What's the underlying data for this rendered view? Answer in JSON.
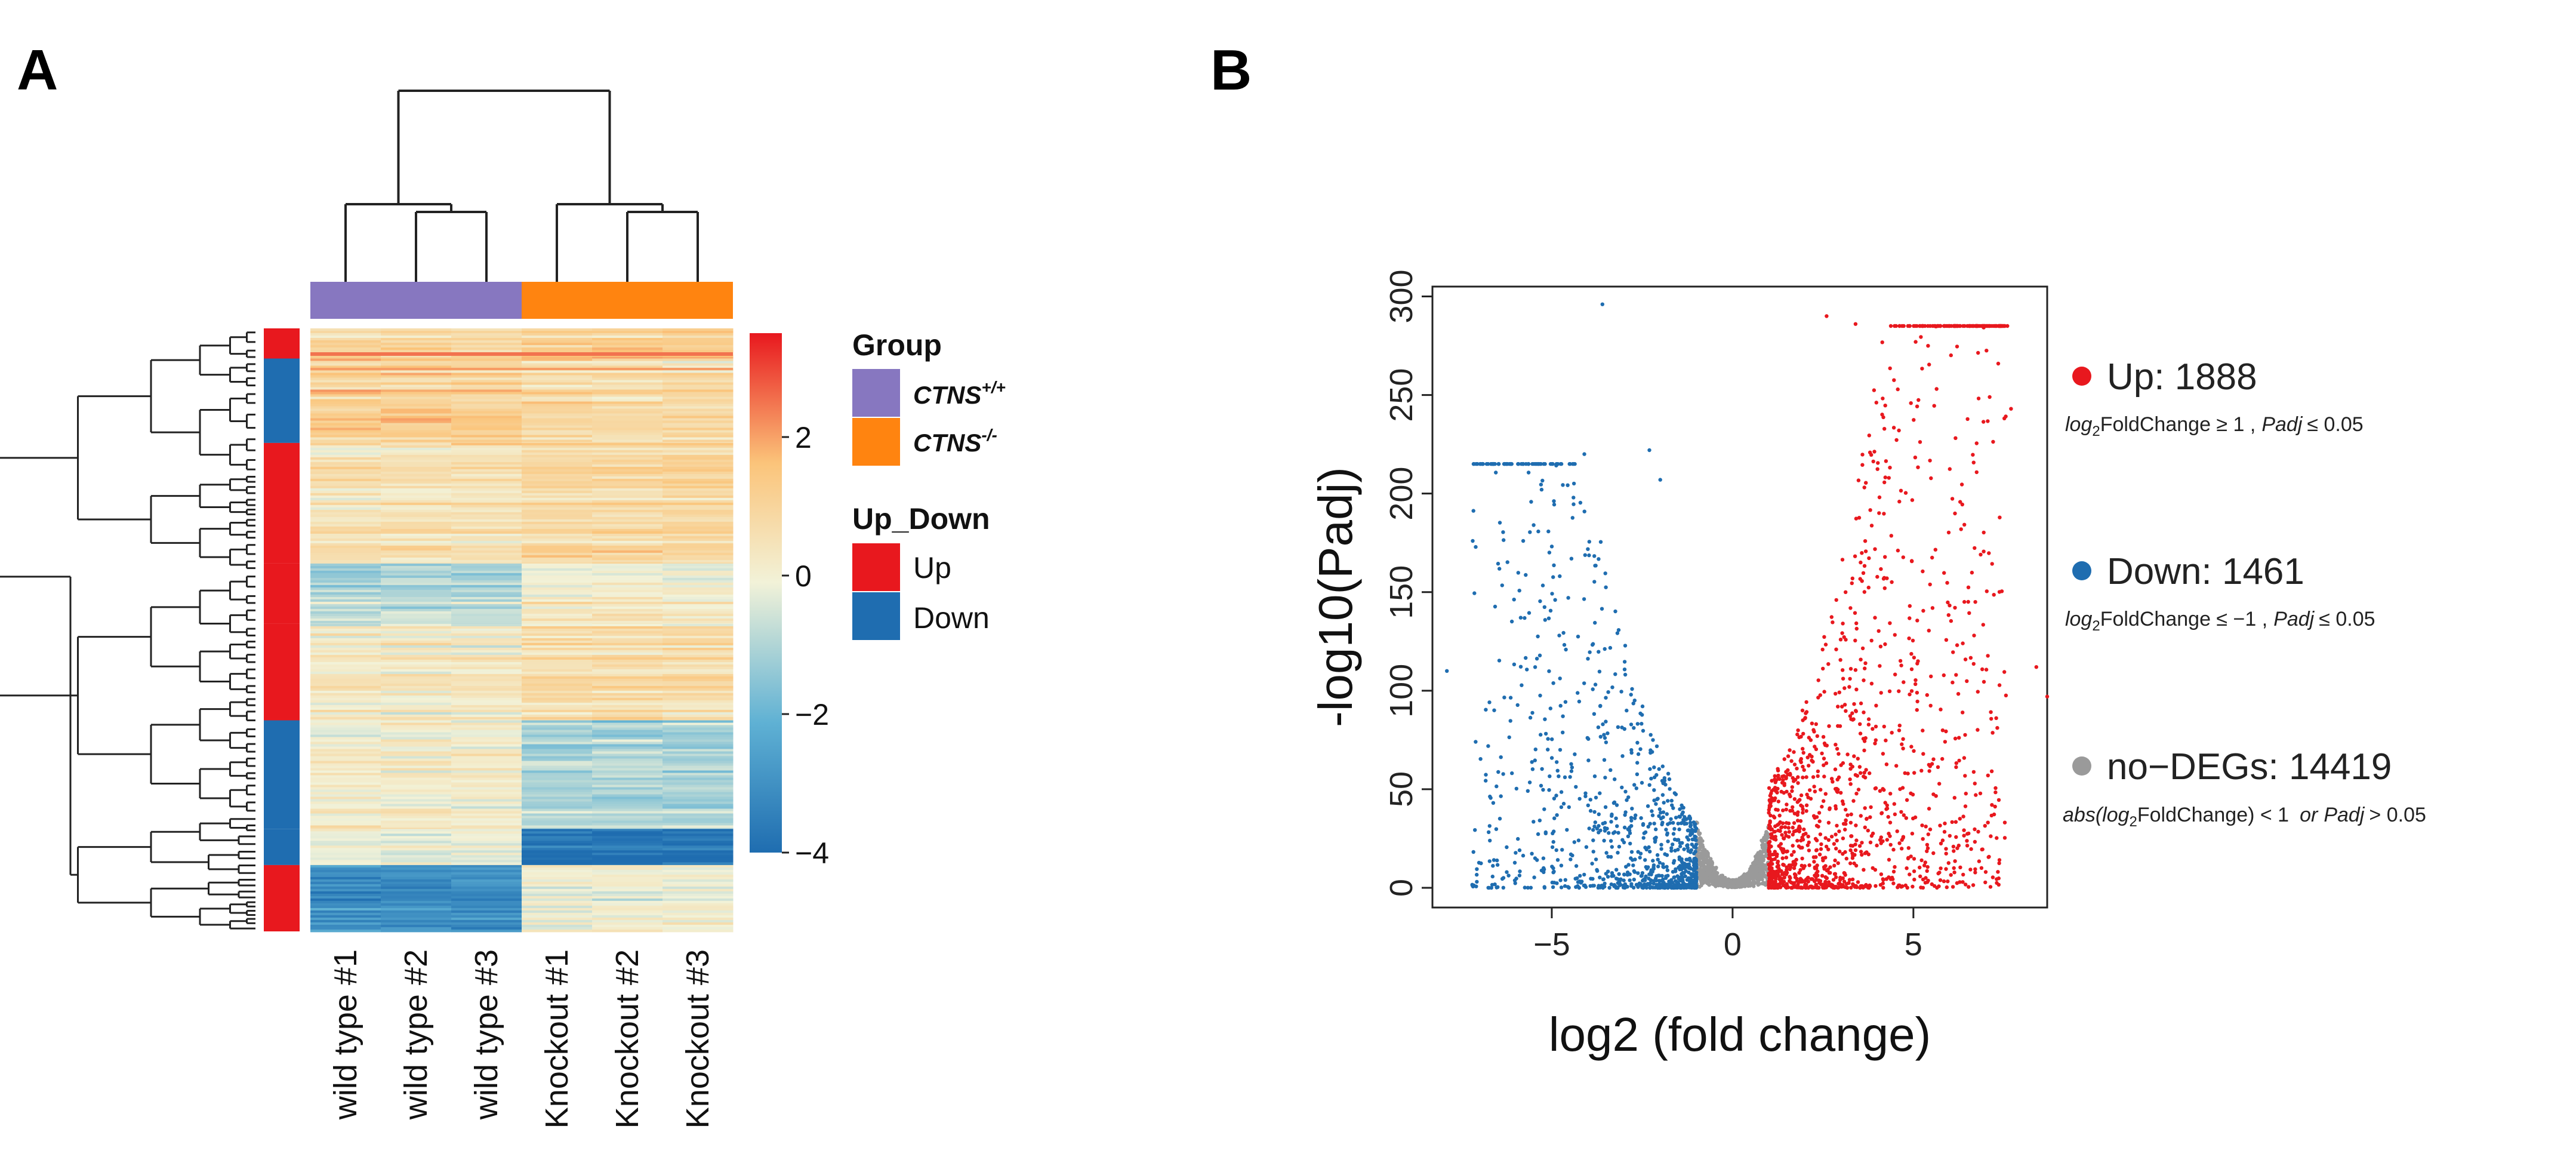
{
  "panels": {
    "a_letter": "A",
    "b_letter": "B"
  },
  "colors": {
    "up": "#e8181e",
    "down": "#1f6db0",
    "nodeg": "#9a9a9a",
    "wildtype_group": "#8777c0",
    "knockout_group": "#ff8410"
  },
  "chart_data": [
    {
      "type": "heatmap",
      "samples": [
        "wild type #1",
        "wild type #2",
        "wild type #3",
        "Knockout #1",
        "Knockout #2",
        "Knockout #3"
      ],
      "column_groups": [
        "CTNS+/+",
        "CTNS+/+",
        "CTNS+/+",
        "CTNS-/-",
        "CTNS-/-",
        "CTNS-/-"
      ],
      "colorbar": {
        "ticks": [
          2,
          0,
          -2,
          -4
        ],
        "labels": [
          "2",
          "0",
          "−2",
          "−4"
        ],
        "range": [
          -4,
          3.5
        ]
      },
      "legend": {
        "group_title": "Group",
        "groups": [
          {
            "base": "CTNS",
            "sup": "+/+",
            "color": "#8777c0"
          },
          {
            "base": "CTNS",
            "sup": "-/-",
            "color": "#ff8410"
          }
        ],
        "updown_title": "Up_Down",
        "updown": [
          {
            "label": "Up",
            "color": "#e8181e"
          },
          {
            "label": "Down",
            "color": "#1f6db0"
          }
        ]
      },
      "row_blocks": [
        {
          "class": "up",
          "wt": 0.9,
          "ko": 1.4,
          "frac": 0.05
        },
        {
          "class": "down",
          "wt": 1.3,
          "ko": 0.9,
          "frac": 0.14
        },
        {
          "class": "up",
          "wt": 0.6,
          "ko": 1.0,
          "frac": 0.2
        },
        {
          "class": "up",
          "wt": -0.8,
          "ko": 0.2,
          "frac": 0.1
        },
        {
          "class": "up",
          "wt": 0.3,
          "ko": 0.8,
          "frac": 0.16
        },
        {
          "class": "down",
          "wt": 0.2,
          "ko": -1.0,
          "frac": 0.18
        },
        {
          "class": "down",
          "wt": 0.1,
          "ko": -3.6,
          "frac": 0.06
        },
        {
          "class": "up",
          "wt": -3.0,
          "ko": 0.1,
          "frac": 0.11
        }
      ]
    },
    {
      "type": "scatter",
      "xlabel": "log2 (fold change)",
      "ylabel": "-log10(Padj)",
      "xlim": [
        -8.3,
        8.7
      ],
      "ylim": [
        -10,
        305
      ],
      "xticks": [
        -5,
        0,
        5
      ],
      "xtick_labels": [
        "−5",
        "0",
        "5"
      ],
      "yticks": [
        0,
        50,
        100,
        150,
        200,
        250,
        300
      ],
      "ytick_labels": [
        "0",
        "50",
        "100",
        "150",
        "200",
        "250",
        "300"
      ],
      "series": [
        {
          "name": "Up",
          "count": 1888,
          "color": "#e8181e",
          "rule": "log2FoldChange ≥ 1 , Padj ≤ 0.05"
        },
        {
          "name": "Down",
          "count": 1461,
          "color": "#1f6db0",
          "rule": "log2FoldChange ≤ −1 , Padj ≤ 0.05"
        },
        {
          "name": "no−DEGs",
          "count": 14419,
          "color": "#9a9a9a",
          "rule": "abs(log2FoldChange) < 1 or Padj > 0.05"
        }
      ],
      "highlight_points": [
        {
          "x": -3.6,
          "y": 296
        },
        {
          "x": -2.3,
          "y": 222
        },
        {
          "x": -4.1,
          "y": 220
        },
        {
          "x": -2.0,
          "y": 207
        },
        {
          "x": -5.5,
          "y": 184
        },
        {
          "x": -7.9,
          "y": 110
        },
        {
          "x": 2.6,
          "y": 290
        },
        {
          "x": 3.4,
          "y": 286
        },
        {
          "x": 7.7,
          "y": 243
        },
        {
          "x": 8.4,
          "y": 112
        },
        {
          "x": 8.7,
          "y": 97
        },
        {
          "x": 4.6,
          "y": 232
        }
      ]
    }
  ],
  "legend_b": {
    "up_label": "Up: 1888",
    "up_rule_fc": "FoldChange ≥ 1 ,",
    "up_rule_p": "≤ 0.05",
    "down_label": "Down: 1461",
    "down_rule_fc": "FoldChange ≤ −1 ,",
    "down_rule_p": "≤ 0.05",
    "nodeg_label": "no−DEGs: 14419",
    "nodeg_rule_a": "abs(",
    "nodeg_rule_fc": "FoldChange) < 1",
    "nodeg_rule_or": "or",
    "nodeg_rule_p": "> 0.05",
    "log": "log",
    "two": "2",
    "padj": "Padj"
  }
}
